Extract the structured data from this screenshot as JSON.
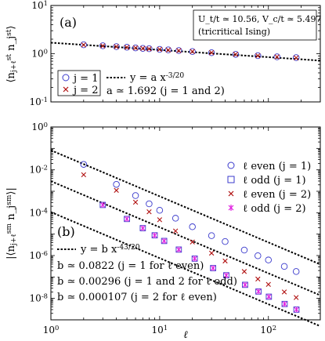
{
  "chart_data": [
    {
      "type": "scatter",
      "panel_label": "(a)",
      "ylabel": "⟨n_{j+ℓ}^{st} n_j^{st}⟩",
      "xscale": "log",
      "yscale": "log",
      "xlim": [
        1,
        300
      ],
      "ylim": [
        0.1,
        10
      ],
      "yticks": [
        0.1,
        1,
        10
      ],
      "ytick_labels": [
        "10^{-1}",
        "10^{0}",
        "10^{1}"
      ],
      "params_box": [
        "U_t/t ≃ 10.56, V_c/t ≃ 5.497",
        "(tricritical Ising)"
      ],
      "series": [
        {
          "name": "j = 1",
          "marker": "circle",
          "color": "#3a3acc",
          "x": [
            2,
            3,
            4,
            5,
            6,
            7,
            8,
            10,
            12,
            15,
            20,
            30,
            50,
            80,
            120,
            180
          ],
          "y": [
            1.53,
            1.46,
            1.4,
            1.36,
            1.32,
            1.29,
            1.27,
            1.23,
            1.2,
            1.16,
            1.11,
            1.05,
            0.97,
            0.91,
            0.86,
            0.83
          ]
        },
        {
          "name": "j = 2",
          "marker": "x",
          "color": "#b01010",
          "x": [
            2,
            3,
            4,
            5,
            6,
            7,
            8,
            10,
            12,
            15,
            20,
            30,
            50,
            80,
            120,
            180
          ],
          "y": [
            1.52,
            1.45,
            1.4,
            1.35,
            1.32,
            1.29,
            1.26,
            1.23,
            1.19,
            1.16,
            1.11,
            1.05,
            0.97,
            0.91,
            0.86,
            0.82
          ]
        }
      ],
      "fit": {
        "label": "y = a x^{-3/20}",
        "a": 1.692,
        "exponent": -0.15,
        "style": "dotted"
      },
      "fit_note": "a ≃ 1.692 (j = 1 and 2)",
      "legend_position": "bottom-left"
    },
    {
      "type": "scatter",
      "panel_label": "(b)",
      "xlabel": "ℓ",
      "ylabel": "|⟨n_{j+ℓ}^{sm} n_j^{sm}⟩|",
      "xscale": "log",
      "yscale": "log",
      "xlim": [
        1,
        300
      ],
      "ylim": [
        1e-09,
        1
      ],
      "xticks": [
        1,
        10,
        100
      ],
      "xtick_labels": [
        "10^{0}",
        "10^{1}",
        "10^{2}"
      ],
      "yticks": [
        1e-08,
        1e-06,
        0.0001,
        0.01,
        1
      ],
      "ytick_labels": [
        "10^{-8}",
        "10^{-6}",
        "10^{-4}",
        "10^{-2}",
        "10^{0}"
      ],
      "series": [
        {
          "name": "ℓ even (j = 1)",
          "marker": "circle",
          "color": "#3a3acc",
          "x": [
            2,
            4,
            6,
            8,
            10,
            14,
            20,
            30,
            40,
            60,
            80,
            100,
            140,
            180
          ],
          "y": [
            0.018,
            0.0021,
            0.00063,
            0.00026,
            0.00013,
            5.5e-05,
            2.2e-05,
            8.5e-06,
            4.5e-06,
            1.8e-06,
            9.8e-07,
            6.2e-07,
            3.1e-07,
            1.8e-07
          ]
        },
        {
          "name": "ℓ odd (j = 1)",
          "marker": "square",
          "color": "#3a3acc",
          "x": [
            3,
            5,
            7,
            9,
            11,
            15,
            21,
            31,
            41,
            61,
            81,
            101,
            141,
            181
          ],
          "y": [
            0.00023,
            5.1e-05,
            1.9e-05,
            8.8e-06,
            4.8e-06,
            1.9e-06,
            7.2e-07,
            2.6e-07,
            1.2e-07,
            4.3e-08,
            2.1e-08,
            1.2e-08,
            5.5e-09,
            3e-09
          ]
        },
        {
          "name": "ℓ even (j = 2)",
          "marker": "x",
          "color": "#b01010",
          "x": [
            2,
            4,
            6,
            8,
            10,
            14,
            20,
            30,
            40,
            60,
            80,
            100,
            140,
            180
          ],
          "y": [
            0.0059,
            0.0011,
            0.00031,
            0.00011,
            4.7e-05,
            1.4e-05,
            4.3e-06,
            1.3e-06,
            5.6e-07,
            1.8e-07,
            8e-08,
            4.5e-08,
            2e-08,
            1.1e-08
          ]
        },
        {
          "name": "ℓ odd (j = 2)",
          "marker": "star",
          "color": "#e020e0",
          "x": [
            3,
            5,
            7,
            9,
            11,
            15,
            21,
            31,
            41,
            61,
            81,
            101,
            141,
            181
          ],
          "y": [
            0.00023,
            5.1e-05,
            1.9e-05,
            8.8e-06,
            4.8e-06,
            1.9e-06,
            7.2e-07,
            2.6e-07,
            1.2e-07,
            4.3e-08,
            2.1e-08,
            1.2e-08,
            5.5e-09,
            3e-09
          ]
        }
      ],
      "fit": {
        "label": "y = b x^{-43/20}",
        "exponent": -2.15,
        "style": "dotted",
        "b_values": [
          0.0822,
          0.00296,
          0.000107
        ]
      },
      "fit_notes": [
        "b ≃ 0.0822 (j = 1 for ℓ even)",
        "b ≃ 0.00296 (j = 1 and 2 for ℓ odd)",
        "b ≃ 0.000107 (j = 2 for ℓ even)"
      ],
      "legend_position": "top-right"
    }
  ]
}
